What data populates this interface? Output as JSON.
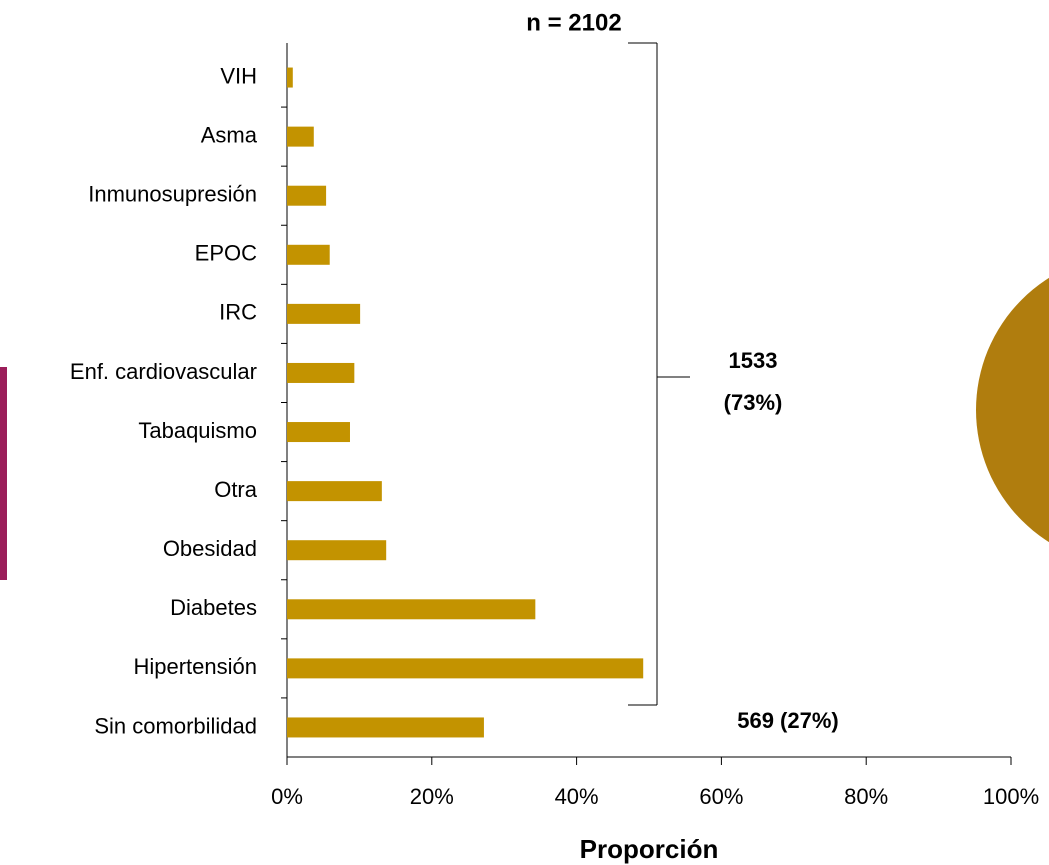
{
  "chart_data": {
    "type": "bar",
    "orientation": "horizontal",
    "categories": [
      "VIH",
      "Asma",
      "Inmunosupresión",
      "EPOC",
      "IRC",
      "Enf. cardiovascular",
      "Tabaquismo",
      "Otra",
      "Obesidad",
      "Diabetes",
      "Hipertensión",
      "Sin comorbilidad"
    ],
    "values": [
      0.8,
      3.7,
      5.4,
      5.9,
      10.1,
      9.3,
      8.7,
      13.1,
      13.7,
      34.3,
      49.2,
      27.2
    ],
    "color": "#c39300",
    "x_label": "Proporción",
    "xlim": [
      0,
      100
    ],
    "xticks": [
      {
        "value": 0,
        "label": "0%"
      },
      {
        "value": 20,
        "label": "20%"
      },
      {
        "value": 40,
        "label": "40%"
      },
      {
        "value": 60,
        "label": "60%"
      },
      {
        "value": 80,
        "label": "80%"
      },
      {
        "value": 100,
        "label": "100%"
      }
    ],
    "annotations": [
      "n = 2102",
      "1533",
      "(73%)",
      "569 (27%)"
    ]
  }
}
